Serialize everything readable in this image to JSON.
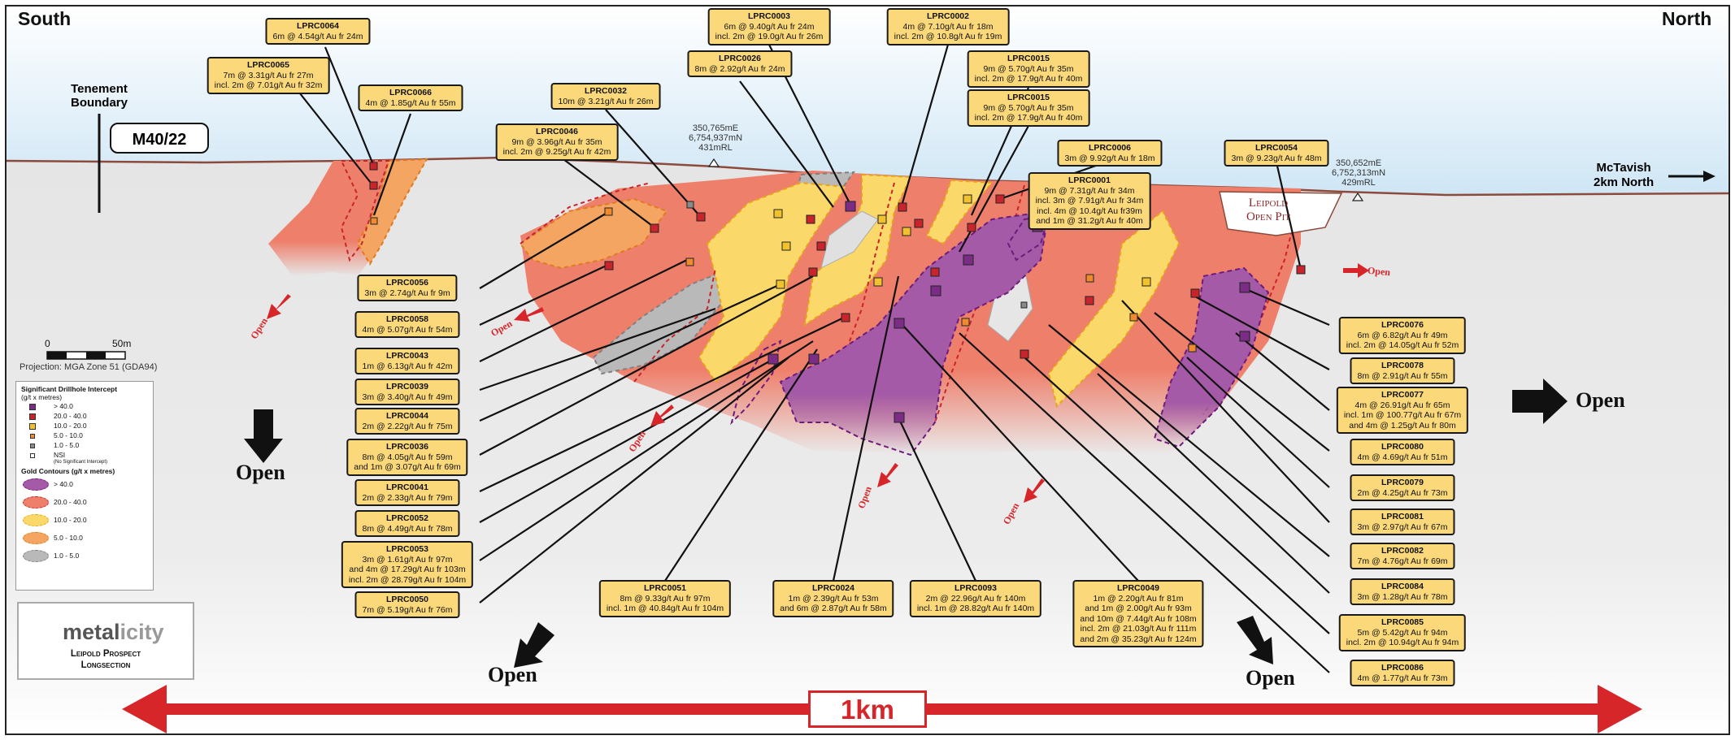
{
  "header": {
    "south": "South",
    "north": "North"
  },
  "tenement": {
    "label_line1": "Tenement",
    "label_line2": "Boundary",
    "id": "M40/22"
  },
  "mctavish": {
    "line1": "McTavish",
    "line2": "2km North"
  },
  "pit": {
    "line1": "Leipold",
    "line2": "Open Pit"
  },
  "coords": [
    {
      "e": "350,765mE",
      "n": "6,754,937mN",
      "rl": "431mRL"
    },
    {
      "e": "350,652mE",
      "n": "6,752,313mN",
      "rl": "429mRL"
    }
  ],
  "scale": {
    "zero": "0",
    "end": "50m",
    "projection": "Projection: MGA Zone 51 (GDA94)",
    "km": "1km"
  },
  "open_labels": {
    "open": "Open"
  },
  "legend": {
    "intercept_title": "Significant Drillhole Intercept",
    "intercept_unit": "(g/t x metres)",
    "intercepts": [
      {
        "label": "> 40.0",
        "color": "#7b2d86"
      },
      {
        "label": "20.0 - 40.0",
        "color": "#c8242c"
      },
      {
        "label": "10.0 - 20.0",
        "color": "#f2c12e"
      },
      {
        "label": "5.0 - 10.0",
        "color": "#ef8a2e"
      },
      {
        "label": "1.0 - 5.0",
        "color": "#8a8a8a"
      },
      {
        "label": "NSI",
        "color": "#ffffff"
      }
    ],
    "nsi_note": "(No Significant Intercept)",
    "contour_title": "Gold Contours (g/t x metres)",
    "contours": [
      {
        "label": "> 40.0",
        "fill": "#a45aa6",
        "stroke": "#6e1c7c"
      },
      {
        "label": "20.0 - 40.0",
        "fill": "#ee7f6b",
        "stroke": "#c8242c"
      },
      {
        "label": "10.0 - 20.0",
        "fill": "#fbd86a",
        "stroke": "#e8a419"
      },
      {
        "label": "5.0 - 10.0",
        "fill": "#f3a561",
        "stroke": "#e07a22"
      },
      {
        "label": "1.0 - 5.0",
        "fill": "#b9b9b9",
        "stroke": "#808080"
      }
    ]
  },
  "logo": {
    "name_a": "metal",
    "name_b": "icity",
    "line1": "Leipold Prospect",
    "line2": "Longsection"
  },
  "labels": [
    {
      "id": "LPRC0064",
      "lines": [
        "6m @ 4.54g/t Au fr 24m"
      ]
    },
    {
      "id": "LPRC0065",
      "lines": [
        "7m @ 3.31g/t Au fr 27m",
        "incl. 2m @ 7.01g/t Au fr 32m"
      ]
    },
    {
      "id": "LPRC0066",
      "lines": [
        "4m @ 1.85g/t Au fr 55m"
      ]
    },
    {
      "id": "LPRC0003",
      "lines": [
        "6m @ 9.40g/t Au fr 24m",
        "incl. 2m @ 19.0g/t Au fr 26m"
      ]
    },
    {
      "id": "LPRC0002",
      "lines": [
        "4m @ 7.10g/t Au fr 18m",
        "incl. 2m @ 10.8g/t Au fr 19m"
      ]
    },
    {
      "id": "LPRC0026",
      "lines": [
        "8m @ 2.92g/t Au fr 24m"
      ]
    },
    {
      "id": "LPRC0015",
      "lines": [
        "9m @ 5.70g/t Au fr 35m",
        "incl. 2m @ 17.9g/t Au fr 40m"
      ]
    },
    {
      "id": "LPRC0032",
      "lines": [
        "10m @ 3.21g/t Au fr 26m"
      ]
    },
    {
      "id": "LPRC0015",
      "lines": [
        "9m @ 5.70g/t Au fr 35m",
        "incl. 2m @ 17.9g/t Au fr 40m"
      ]
    },
    {
      "id": "LPRC0046",
      "lines": [
        "9m @ 3.96g/t Au fr 35m",
        "incl. 2m @ 9.25g/t Au fr 42m"
      ]
    },
    {
      "id": "LPRC0006",
      "lines": [
        "3m @ 9.92g/t Au fr 18m"
      ]
    },
    {
      "id": "LPRC0054",
      "lines": [
        "3m @ 9.23g/t Au fr 48m"
      ]
    },
    {
      "id": "LPRC0001",
      "lines": [
        "9m @ 7.31g/t Au fr 34m",
        "incl. 3m @ 7.91g/t Au fr 34m",
        "incl. 4m @ 10.4g/t Au fr39m",
        "and 1m @ 31.2g/t Au fr 40m"
      ]
    },
    {
      "id": "LPRC0056",
      "lines": [
        "3m @ 2.74g/t Au fr 9m"
      ]
    },
    {
      "id": "LPRC0058",
      "lines": [
        "4m @ 5.07g/t Au fr 54m"
      ]
    },
    {
      "id": "LPRC0043",
      "lines": [
        "1m @ 6.13g/t Au fr 42m"
      ]
    },
    {
      "id": "LPRC0039",
      "lines": [
        "3m @ 3.40g/t Au fr 49m"
      ]
    },
    {
      "id": "LPRC0044",
      "lines": [
        "2m @ 2.22g/t Au fr 75m"
      ]
    },
    {
      "id": "LPRC0036",
      "lines": [
        "8m @ 4.05g/t Au fr 59m",
        "and 1m @ 3.07g/t Au fr 69m"
      ]
    },
    {
      "id": "LPRC0041",
      "lines": [
        "2m @ 2.33g/t Au fr 79m"
      ]
    },
    {
      "id": "LPRC0052",
      "lines": [
        "8m @ 4.49g/t Au fr 78m"
      ]
    },
    {
      "id": "LPRC0053",
      "lines": [
        "3m @ 1.61g/t Au fr 97m",
        "and 4m @ 17.29g/t Au fr 103m",
        "incl. 2m @ 28.79g/t Au fr 104m"
      ]
    },
    {
      "id": "LPRC0050",
      "lines": [
        "7m @ 5.19g/t Au fr 76m"
      ]
    },
    {
      "id": "LPRC0051",
      "lines": [
        "8m @ 9.33g/t Au fr 97m",
        "incl. 1m @ 40.84g/t Au fr 104m"
      ]
    },
    {
      "id": "LPRC0024",
      "lines": [
        "1m @ 2.39g/t Au fr 53m",
        "and 6m @ 2.87g/t Au fr 58m"
      ]
    },
    {
      "id": "LPRC0093",
      "lines": [
        "2m @ 22.96g/t Au fr 140m",
        "incl. 1m @ 28.82g/t Au fr 140m"
      ]
    },
    {
      "id": "LPRC0049",
      "lines": [
        "1m @ 2.20g/t Au fr 81m",
        "and 1m @ 2.00g/t Au fr 93m",
        "and 10m @ 7.44g/t Au fr 108m",
        "incl. 2m @ 21.03g/t Au fr 111m",
        "and 2m @ 35.23g/t Au fr 124m"
      ]
    },
    {
      "id": "LPRC0076",
      "lines": [
        "6m @ 6.82g/t Au fr 49m",
        "incl. 2m @ 14.05g/t Au fr 52m"
      ]
    },
    {
      "id": "LPRC0078",
      "lines": [
        "8m @ 2.91g/t Au fr 55m"
      ]
    },
    {
      "id": "LPRC0077",
      "lines": [
        "4m @ 26.91g/t Au fr 65m",
        "incl. 1m @ 100.77g/t Au fr 67m",
        "and 4m @ 1.25g/t Au fr 80m"
      ]
    },
    {
      "id": "LPRC0080",
      "lines": [
        "4m @ 4.69g/t Au fr 51m"
      ]
    },
    {
      "id": "LPRC0079",
      "lines": [
        "2m @ 4.25g/t Au fr 73m"
      ]
    },
    {
      "id": "LPRC0081",
      "lines": [
        "3m @ 2.97g/t Au fr 67m"
      ]
    },
    {
      "id": "LPRC0082",
      "lines": [
        "7m @ 4.76g/t Au fr 69m"
      ]
    },
    {
      "id": "LPRC0084",
      "lines": [
        "3m @ 1.28g/t Au fr 78m"
      ]
    },
    {
      "id": "LPRC0085",
      "lines": [
        "5m @ 5.42g/t Au fr 94m",
        "incl. 2m @ 10.94g/t Au fr 94m"
      ]
    },
    {
      "id": "LPRC0086",
      "lines": [
        "4m @ 1.77g/t Au fr 73m"
      ]
    }
  ]
}
